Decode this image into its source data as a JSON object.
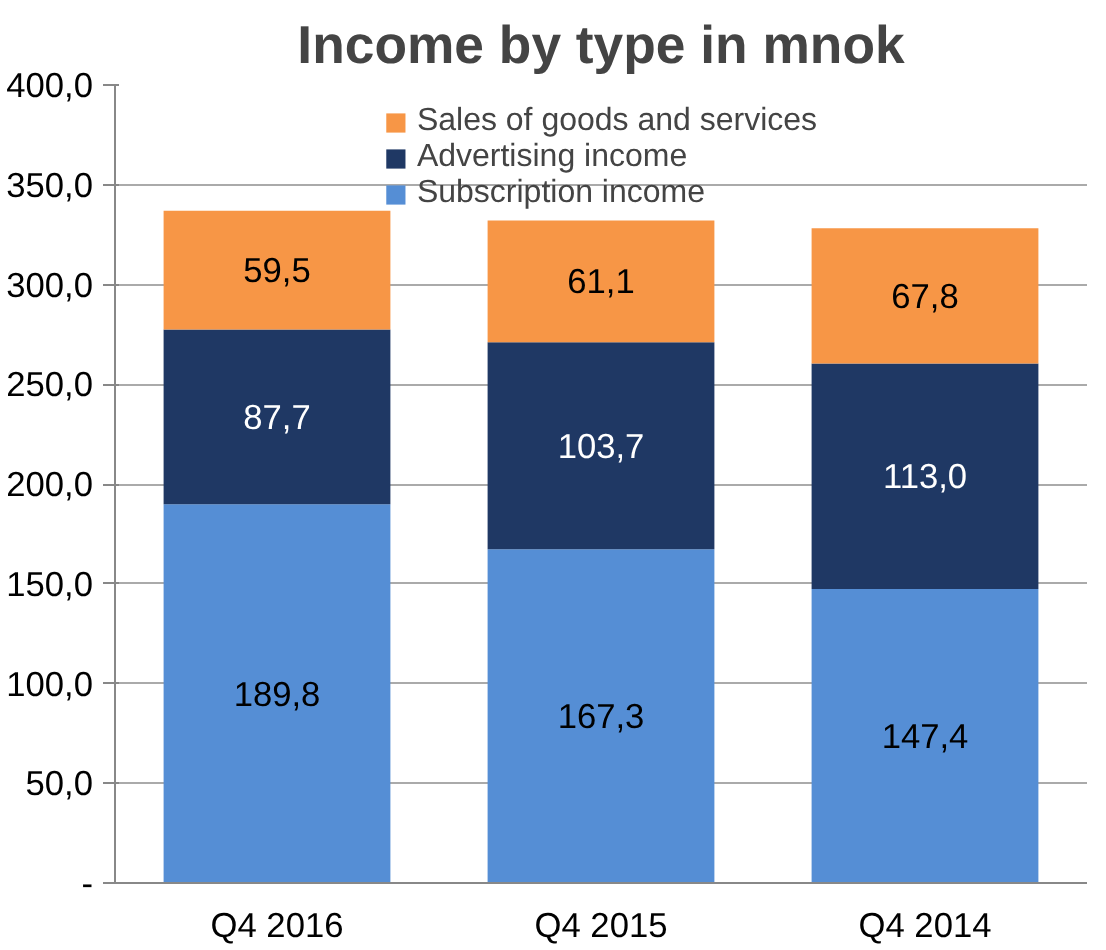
{
  "chart_data": {
    "type": "bar",
    "title": "Income by type in mnok",
    "stacked": true,
    "categories": [
      "Q4 2016",
      "Q4 2015",
      "Q4 2014"
    ],
    "series": [
      {
        "name": "Subscription income",
        "color": "#558ed5",
        "values": [
          189.8,
          167.3,
          147.4
        ],
        "value_labels": [
          "189,8",
          "167,3",
          "147,4"
        ]
      },
      {
        "name": "Advertising income",
        "color": "#1f3864",
        "values": [
          87.7,
          103.7,
          113.0
        ],
        "value_labels": [
          "87,7",
          "103,7",
          "113,0"
        ]
      },
      {
        "name": "Sales of goods and services",
        "color": "#f79646",
        "values": [
          59.5,
          61.1,
          67.8
        ],
        "value_labels": [
          "59,5",
          "61,1",
          "67,8"
        ]
      }
    ],
    "ylim": [
      0,
      400
    ],
    "yticks": [
      {
        "value": 0,
        "label": "-"
      },
      {
        "value": 50,
        "label": "50,0"
      },
      {
        "value": 100,
        "label": "100,0"
      },
      {
        "value": 150,
        "label": "150,0"
      },
      {
        "value": 200,
        "label": "200,0"
      },
      {
        "value": 250,
        "label": "250,0"
      },
      {
        "value": 300,
        "label": "300,0"
      },
      {
        "value": 350,
        "label": "350,0"
      },
      {
        "value": 400,
        "label": "400,0"
      }
    ],
    "grid": "y",
    "legend": "top"
  }
}
